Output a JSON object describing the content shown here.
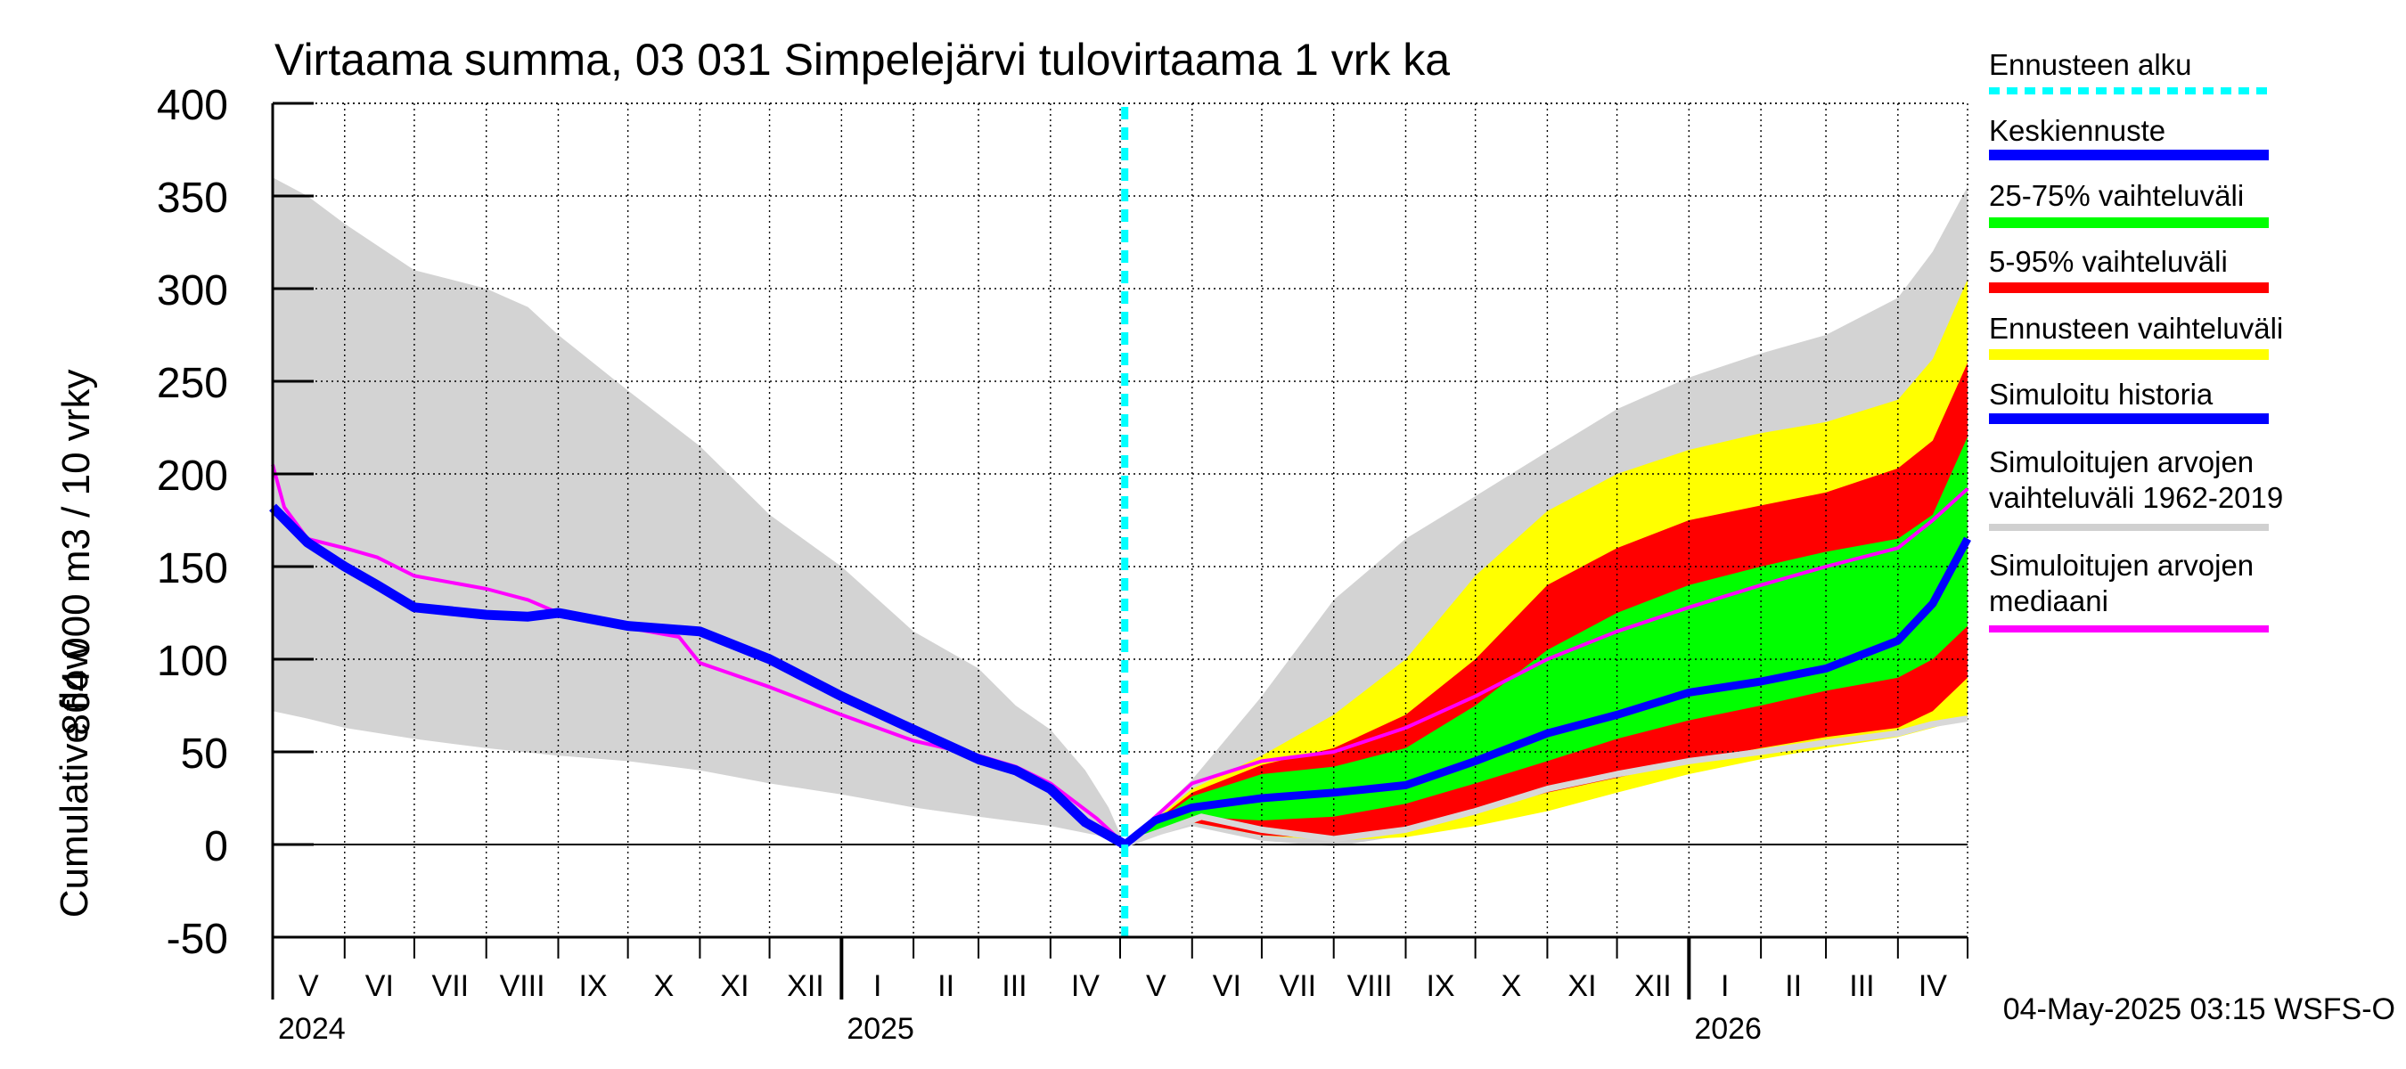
{
  "chart_data": {
    "type": "area",
    "title": "Virtaama summa, 03 031 Simpelejärvi tulovirtaama 1 vrk ka",
    "ylabel_line1": "864 000 m3 / 10 vrky",
    "ylabel_line2": "Cumulative flow",
    "ylim": [
      -50,
      400
    ],
    "yticks": [
      -50,
      0,
      50,
      100,
      150,
      200,
      250,
      300,
      350,
      400
    ],
    "xlim_days": [
      0,
      730
    ],
    "forecast_start_day": 367,
    "months": [
      {
        "label": "V",
        "start": 0
      },
      {
        "label": "VI",
        "start": 31
      },
      {
        "label": "VII",
        "start": 61
      },
      {
        "label": "VIII",
        "start": 92
      },
      {
        "label": "IX",
        "start": 123
      },
      {
        "label": "X",
        "start": 153
      },
      {
        "label": "XI",
        "start": 184
      },
      {
        "label": "XII",
        "start": 214
      },
      {
        "label": "I",
        "start": 245
      },
      {
        "label": "II",
        "start": 276
      },
      {
        "label": "III",
        "start": 304
      },
      {
        "label": "IV",
        "start": 335
      },
      {
        "label": "V",
        "start": 365
      },
      {
        "label": "VI",
        "start": 396
      },
      {
        "label": "VII",
        "start": 426
      },
      {
        "label": "VIII",
        "start": 457
      },
      {
        "label": "IX",
        "start": 488
      },
      {
        "label": "X",
        "start": 518
      },
      {
        "label": "XI",
        "start": 549
      },
      {
        "label": "XII",
        "start": 579
      },
      {
        "label": "I",
        "start": 610
      },
      {
        "label": "II",
        "start": 641
      },
      {
        "label": "III",
        "start": 669
      },
      {
        "label": "IV",
        "start": 700
      }
    ],
    "month_end": 730,
    "years": [
      {
        "label": "2024",
        "day": 0
      },
      {
        "label": "2025",
        "day": 245
      },
      {
        "label": "2026",
        "day": 610
      }
    ],
    "series": {
      "hist_range_upper": [
        [
          0,
          360
        ],
        [
          15,
          350
        ],
        [
          31,
          335
        ],
        [
          61,
          310
        ],
        [
          92,
          300
        ],
        [
          110,
          290
        ],
        [
          123,
          275
        ],
        [
          153,
          245
        ],
        [
          184,
          215
        ],
        [
          214,
          178
        ],
        [
          245,
          150
        ],
        [
          276,
          115
        ],
        [
          304,
          95
        ],
        [
          320,
          75
        ],
        [
          335,
          62
        ],
        [
          350,
          40
        ],
        [
          360,
          20
        ],
        [
          367,
          0
        ]
      ],
      "hist_range_lower": [
        [
          0,
          72
        ],
        [
          15,
          68
        ],
        [
          31,
          63
        ],
        [
          61,
          57
        ],
        [
          92,
          52
        ],
        [
          123,
          48
        ],
        [
          153,
          45
        ],
        [
          184,
          40
        ],
        [
          214,
          33
        ],
        [
          245,
          27
        ],
        [
          276,
          20
        ],
        [
          304,
          15
        ],
        [
          335,
          10
        ],
        [
          355,
          5
        ],
        [
          367,
          0
        ]
      ],
      "sim_history": [
        [
          0,
          182
        ],
        [
          15,
          163
        ],
        [
          31,
          150
        ],
        [
          45,
          140
        ],
        [
          61,
          128
        ],
        [
          92,
          124
        ],
        [
          110,
          123
        ],
        [
          123,
          125
        ],
        [
          153,
          118
        ],
        [
          184,
          115
        ],
        [
          214,
          100
        ],
        [
          245,
          80
        ],
        [
          276,
          62
        ],
        [
          304,
          46
        ],
        [
          320,
          40
        ],
        [
          335,
          30
        ],
        [
          350,
          12
        ],
        [
          367,
          0
        ]
      ],
      "median_history": [
        [
          0,
          205
        ],
        [
          5,
          182
        ],
        [
          15,
          165
        ],
        [
          31,
          160
        ],
        [
          45,
          155
        ],
        [
          61,
          145
        ],
        [
          92,
          138
        ],
        [
          110,
          132
        ],
        [
          123,
          125
        ],
        [
          153,
          117
        ],
        [
          175,
          112
        ],
        [
          184,
          98
        ],
        [
          214,
          85
        ],
        [
          245,
          70
        ],
        [
          276,
          56
        ],
        [
          304,
          48
        ],
        [
          320,
          42
        ],
        [
          335,
          33
        ],
        [
          355,
          14
        ],
        [
          367,
          0
        ]
      ],
      "fc_sim_upper": [
        [
          367,
          0
        ],
        [
          396,
          35
        ],
        [
          426,
          80
        ],
        [
          457,
          132
        ],
        [
          488,
          165
        ],
        [
          518,
          188
        ],
        [
          549,
          212
        ],
        [
          579,
          235
        ],
        [
          610,
          252
        ],
        [
          641,
          265
        ],
        [
          669,
          275
        ],
        [
          700,
          295
        ],
        [
          715,
          320
        ],
        [
          730,
          355
        ]
      ],
      "fc_sim_lower": [
        [
          367,
          0
        ],
        [
          396,
          10
        ],
        [
          426,
          2
        ],
        [
          457,
          -1
        ],
        [
          488,
          5
        ],
        [
          518,
          14
        ],
        [
          549,
          25
        ],
        [
          579,
          35
        ],
        [
          610,
          43
        ],
        [
          641,
          50
        ],
        [
          669,
          57
        ],
        [
          700,
          62
        ],
        [
          730,
          72
        ]
      ],
      "fc_range_upper": [
        [
          367,
          0
        ],
        [
          396,
          30
        ],
        [
          426,
          48
        ],
        [
          457,
          70
        ],
        [
          488,
          100
        ],
        [
          518,
          145
        ],
        [
          549,
          180
        ],
        [
          579,
          200
        ],
        [
          610,
          213
        ],
        [
          641,
          222
        ],
        [
          669,
          228
        ],
        [
          700,
          240
        ],
        [
          715,
          262
        ],
        [
          730,
          305
        ]
      ],
      "fc_range_lower": [
        [
          367,
          0
        ],
        [
          396,
          12
        ],
        [
          426,
          5
        ],
        [
          457,
          2
        ],
        [
          488,
          4
        ],
        [
          518,
          10
        ],
        [
          549,
          18
        ],
        [
          579,
          28
        ],
        [
          610,
          38
        ],
        [
          641,
          46
        ],
        [
          669,
          52
        ],
        [
          700,
          58
        ],
        [
          730,
          68
        ]
      ],
      "fc_p95": [
        [
          367,
          0
        ],
        [
          396,
          28
        ],
        [
          426,
          43
        ],
        [
          457,
          52
        ],
        [
          488,
          70
        ],
        [
          518,
          100
        ],
        [
          549,
          140
        ],
        [
          579,
          160
        ],
        [
          610,
          175
        ],
        [
          641,
          183
        ],
        [
          669,
          190
        ],
        [
          700,
          203
        ],
        [
          715,
          218
        ],
        [
          730,
          260
        ]
      ],
      "fc_p75": [
        [
          367,
          0
        ],
        [
          396,
          26
        ],
        [
          426,
          38
        ],
        [
          457,
          42
        ],
        [
          488,
          52
        ],
        [
          518,
          75
        ],
        [
          549,
          105
        ],
        [
          579,
          125
        ],
        [
          610,
          140
        ],
        [
          641,
          150
        ],
        [
          669,
          158
        ],
        [
          700,
          165
        ],
        [
          715,
          178
        ],
        [
          730,
          220
        ]
      ],
      "fc_p25": [
        [
          367,
          0
        ],
        [
          396,
          15
        ],
        [
          426,
          13
        ],
        [
          457,
          15
        ],
        [
          488,
          22
        ],
        [
          518,
          33
        ],
        [
          549,
          45
        ],
        [
          579,
          57
        ],
        [
          610,
          67
        ],
        [
          641,
          75
        ],
        [
          669,
          83
        ],
        [
          700,
          90
        ],
        [
          715,
          100
        ],
        [
          730,
          118
        ]
      ],
      "fc_p5": [
        [
          367,
          0
        ],
        [
          396,
          12
        ],
        [
          426,
          5
        ],
        [
          457,
          3
        ],
        [
          488,
          8
        ],
        [
          518,
          18
        ],
        [
          549,
          28
        ],
        [
          579,
          36
        ],
        [
          610,
          45
        ],
        [
          641,
          52
        ],
        [
          669,
          58
        ],
        [
          700,
          63
        ],
        [
          715,
          72
        ],
        [
          730,
          90
        ]
      ],
      "fc_mean": [
        [
          367,
          0
        ],
        [
          380,
          13
        ],
        [
          396,
          20
        ],
        [
          426,
          25
        ],
        [
          457,
          28
        ],
        [
          488,
          32
        ],
        [
          518,
          45
        ],
        [
          549,
          60
        ],
        [
          579,
          70
        ],
        [
          610,
          82
        ],
        [
          641,
          88
        ],
        [
          669,
          95
        ],
        [
          700,
          110
        ],
        [
          715,
          130
        ],
        [
          730,
          165
        ]
      ],
      "fc_median": [
        [
          367,
          0
        ],
        [
          396,
          33
        ],
        [
          426,
          45
        ],
        [
          457,
          50
        ],
        [
          488,
          63
        ],
        [
          518,
          80
        ],
        [
          549,
          100
        ],
        [
          579,
          115
        ],
        [
          610,
          128
        ],
        [
          641,
          140
        ],
        [
          669,
          150
        ],
        [
          700,
          160
        ],
        [
          715,
          175
        ],
        [
          730,
          192
        ]
      ],
      "fc_sim_median": [
        [
          367,
          0
        ],
        [
          400,
          15
        ],
        [
          426,
          8
        ],
        [
          457,
          3
        ],
        [
          488,
          8
        ],
        [
          518,
          18
        ],
        [
          549,
          30
        ],
        [
          579,
          38
        ],
        [
          610,
          45
        ],
        [
          641,
          50
        ],
        [
          669,
          55
        ],
        [
          700,
          60
        ],
        [
          715,
          65
        ],
        [
          730,
          68
        ]
      ]
    },
    "legend": [
      {
        "label": "Ennusteen alku",
        "color": "#00ffff",
        "style": "dashed"
      },
      {
        "label": "Keskiennuste",
        "color": "#0000ff",
        "style": "solid"
      },
      {
        "label": "25-75% vaihteluväli",
        "color": "#00ff00",
        "style": "solid"
      },
      {
        "label": "5-95% vaihteluväli",
        "color": "#ff0000",
        "style": "solid"
      },
      {
        "label": "Ennusteen vaihteluväli",
        "color": "#ffff00",
        "style": "solid"
      },
      {
        "label": "Simuloitu historia",
        "color": "#0000ff",
        "style": "solid"
      },
      {
        "label": "Simuloitujen arvojen vaihteluväli 1962-2019",
        "line1": "Simuloitujen arvojen",
        "line2": "vaihteluväli 1962-2019",
        "color": "#d0d0d0",
        "style": "solid"
      },
      {
        "label": "Simuloitujen arvojen mediaani",
        "line1": "Simuloitujen arvojen",
        "line2": "mediaani",
        "color": "#ff00ff",
        "style": "solid"
      }
    ],
    "footer": "04-May-2025 03:15 WSFS-O",
    "colors": {
      "hist_range": "#d3d3d3",
      "forecast_range": "#ffff00",
      "p5_95": "#ff0000",
      "p25_75": "#00ff00",
      "mean": "#0000ff",
      "median": "#ff00ff",
      "sim_median": "#d8d8d8",
      "forecast_start": "#00ffff"
    }
  }
}
